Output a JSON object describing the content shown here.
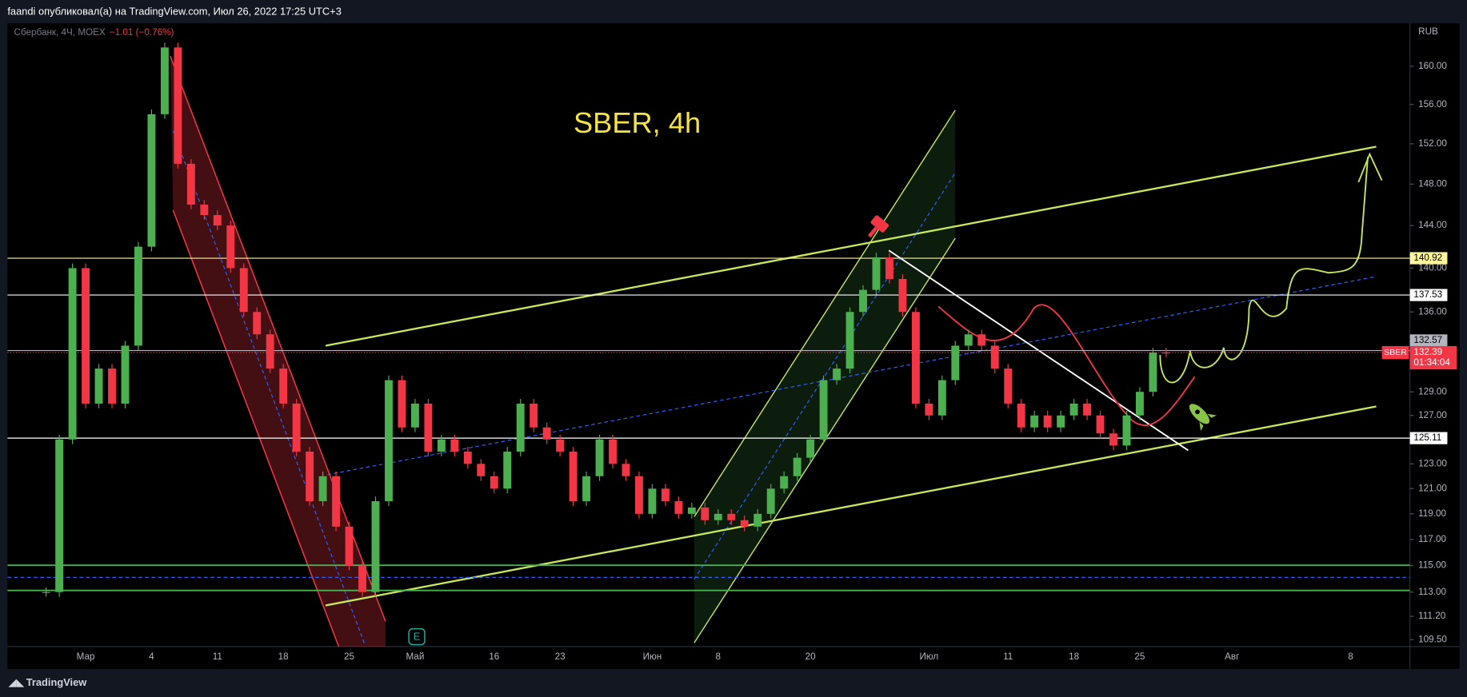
{
  "header": "faandi опубликовал(а) на TradingView.com, Июл 26, 2022 17:25 UTC+3",
  "footer": "TradingView",
  "chart_data": {
    "type": "candlestick",
    "title": "SBER, 4h",
    "symbol_label": "Сбербанк, 4Ч, MOEX",
    "change_label": "−1.01 (−0.76%)",
    "currency": "RUB",
    "earnings_marker": "E",
    "up_color": "#4caf50",
    "down_color": "#f23645",
    "log_scale": true,
    "ylim": [
      109,
      164.6
    ],
    "yticks": [
      {
        "value": 160,
        "label": "160.00"
      },
      {
        "value": 156,
        "label": "156.00"
      },
      {
        "value": 152,
        "label": "152.00"
      },
      {
        "value": 148,
        "label": "148.00"
      },
      {
        "value": 144,
        "label": "144.00"
      },
      {
        "value": 140,
        "label": "140.00"
      },
      {
        "value": 136,
        "label": "136.00"
      },
      {
        "value": 129,
        "label": "129.00"
      },
      {
        "value": 127,
        "label": "127.00"
      },
      {
        "value": 123,
        "label": "123.00"
      },
      {
        "value": 121,
        "label": "121.00"
      },
      {
        "value": 119,
        "label": "119.00"
      },
      {
        "value": 117,
        "label": "117.00"
      },
      {
        "value": 115,
        "label": "115.00"
      },
      {
        "value": 113,
        "label": "113.00"
      },
      {
        "value": 111.2,
        "label": "111.20"
      },
      {
        "value": 109.5,
        "label": "109.50"
      }
    ],
    "price_levels": [
      {
        "value": 140.92,
        "color": "#fff59d"
      },
      {
        "value": 137.53,
        "color": "#ffffff"
      },
      {
        "value": 132.57,
        "color": "#b2b5be"
      },
      {
        "value": 125.11,
        "color": "#ffffff"
      }
    ],
    "last_price": {
      "symbol": "SBER",
      "value": 132.39,
      "countdown": "01:34:04",
      "color": "#f23645"
    },
    "categories": [
      null,
      null,
      null,
      null,
      null,
      null,
      "Мар",
      null,
      null,
      null,
      null,
      "4",
      null,
      null,
      null,
      null,
      "11",
      null,
      null,
      null,
      null,
      "18",
      null,
      null,
      null,
      null,
      "25",
      null,
      null,
      null,
      null,
      "Май",
      null,
      null,
      null,
      null,
      null,
      "16",
      null,
      null,
      null,
      null,
      "23",
      null,
      null,
      null,
      null,
      null,
      null,
      "Июн",
      null,
      null,
      null,
      null,
      "8",
      null,
      null,
      null,
      null,
      null,
      null,
      "20",
      null,
      null,
      null,
      null,
      null,
      null,
      null,
      null,
      "Июл",
      null,
      null,
      null,
      null,
      null,
      "11",
      null,
      null,
      null,
      null,
      "18",
      null,
      null,
      null,
      null,
      "25",
      null,
      null,
      null,
      null,
      null,
      null,
      "Авг",
      null,
      null,
      null,
      null,
      null,
      null,
      null,
      null,
      "8",
      null,
      null,
      null,
      null
    ],
    "values": [
      null,
      null,
      null,
      113,
      125,
      140,
      128,
      131,
      128,
      133,
      142,
      155,
      162,
      150,
      146,
      145,
      144,
      140,
      136,
      134,
      131,
      128,
      124,
      120,
      122,
      118,
      115,
      113,
      120,
      130,
      126,
      128,
      124,
      125,
      124,
      123,
      122,
      121,
      124,
      128,
      126,
      125,
      124,
      120,
      122,
      125,
      123,
      122,
      119,
      121,
      120,
      119,
      119.5,
      118.5,
      119,
      118.5,
      118,
      119,
      121,
      122,
      123.5,
      125,
      130,
      131,
      136,
      138,
      141,
      139,
      136,
      128,
      127,
      130,
      133,
      134,
      133,
      131,
      128,
      126,
      127,
      126,
      127,
      128,
      127,
      125.5,
      124.5,
      127,
      129,
      132.4,
      132.39,
      null,
      null,
      null,
      null,
      null,
      null,
      null,
      null,
      null,
      null,
      null,
      null,
      null,
      null,
      null,
      null,
      null,
      null
    ]
  }
}
